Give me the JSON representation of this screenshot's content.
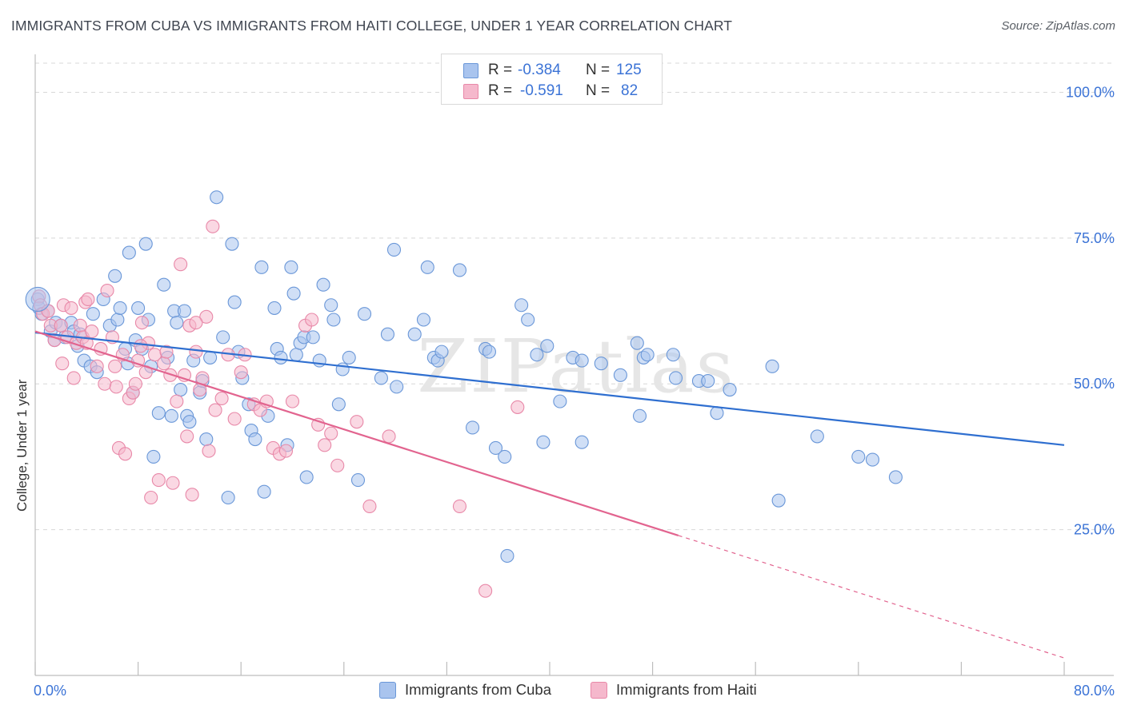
{
  "title": "IMMIGRANTS FROM CUBA VS IMMIGRANTS FROM HAITI COLLEGE, UNDER 1 YEAR CORRELATION CHART",
  "source": "Source: ZipAtlas.com",
  "watermark": "ZIPatlas",
  "legend": {
    "rows": [
      {
        "r_label": "R =",
        "r_value": "-0.384",
        "n_label": "N =",
        "n_value": "125"
      },
      {
        "r_label": "R =",
        "r_value": "-0.591",
        "n_label": "N =",
        "n_value": "82"
      }
    ]
  },
  "bottom_legend": {
    "cuba": "Immigrants from Cuba",
    "haiti": "Immigrants from Haiti"
  },
  "colors": {
    "cuba_fill": "#a9c4ee",
    "cuba_stroke": "#6a97d8",
    "cuba_line": "#2f6fd0",
    "haiti_fill": "#f5b8cc",
    "haiti_stroke": "#e888a8",
    "haiti_line": "#e2648f",
    "axis_label": "#3b73d6",
    "grid": "#d8d8d8"
  },
  "chart_data": {
    "type": "scatter",
    "title": "IMMIGRANTS FROM CUBA VS IMMIGRANTS FROM HAITI COLLEGE, UNDER 1 YEAR CORRELATION CHART",
    "xlabel": "",
    "ylabel": "College, Under 1 year",
    "xlim": [
      0,
      80
    ],
    "ylim": [
      0,
      105
    ],
    "x_tick_labels": [
      "0.0%",
      "80.0%"
    ],
    "y_tick_labels": [
      "100.0%",
      "75.0%",
      "50.0%",
      "25.0%"
    ],
    "y_ticks": [
      100,
      75,
      50,
      25
    ],
    "grid": true,
    "legend_position": "top-center",
    "series": [
      {
        "name": "Immigrants from Cuba",
        "r": -0.384,
        "n": 125,
        "trend": {
          "x0": 0,
          "y0": 58.8,
          "x1": 80,
          "y1": 39.5
        },
        "points": [
          [
            0.2,
            64.5
          ],
          [
            0.3,
            63
          ],
          [
            0.5,
            62
          ],
          [
            1.0,
            62.5
          ],
          [
            1.2,
            59
          ],
          [
            1.5,
            57.5
          ],
          [
            1.6,
            60.5
          ],
          [
            2.0,
            60
          ],
          [
            2.3,
            58
          ],
          [
            2.8,
            60.5
          ],
          [
            3.0,
            59
          ],
          [
            3.3,
            56.5
          ],
          [
            3.5,
            58.5
          ],
          [
            3.8,
            54
          ],
          [
            4.3,
            53
          ],
          [
            4.5,
            62
          ],
          [
            4.8,
            52
          ],
          [
            5.3,
            64.5
          ],
          [
            5.8,
            60
          ],
          [
            6.2,
            68.5
          ],
          [
            6.4,
            61
          ],
          [
            6.6,
            63
          ],
          [
            7.0,
            56
          ],
          [
            7.2,
            53.5
          ],
          [
            7.3,
            72.5
          ],
          [
            7.6,
            48.5
          ],
          [
            7.8,
            57.5
          ],
          [
            8.0,
            63
          ],
          [
            8.3,
            56
          ],
          [
            8.6,
            74
          ],
          [
            8.8,
            61
          ],
          [
            9.0,
            53
          ],
          [
            9.2,
            37.5
          ],
          [
            9.6,
            45
          ],
          [
            10.0,
            67
          ],
          [
            10.3,
            54.5
          ],
          [
            10.6,
            44.5
          ],
          [
            10.8,
            62.5
          ],
          [
            11.0,
            60.5
          ],
          [
            11.3,
            49
          ],
          [
            11.6,
            62.5
          ],
          [
            11.8,
            44.5
          ],
          [
            12.0,
            43.5
          ],
          [
            12.3,
            54
          ],
          [
            12.8,
            48.5
          ],
          [
            13.0,
            50.5
          ],
          [
            13.3,
            40.5
          ],
          [
            13.6,
            54.5
          ],
          [
            14.1,
            82
          ],
          [
            14.6,
            58
          ],
          [
            15.0,
            30.5
          ],
          [
            15.3,
            74
          ],
          [
            15.5,
            64
          ],
          [
            15.8,
            55.5
          ],
          [
            16.1,
            51
          ],
          [
            16.6,
            46.5
          ],
          [
            16.8,
            42
          ],
          [
            17.1,
            40.5
          ],
          [
            17.6,
            70
          ],
          [
            17.8,
            31.5
          ],
          [
            18.1,
            44.5
          ],
          [
            18.6,
            63
          ],
          [
            18.8,
            56
          ],
          [
            19.1,
            54.5
          ],
          [
            19.6,
            39.5
          ],
          [
            19.9,
            70
          ],
          [
            20.1,
            65.5
          ],
          [
            20.3,
            55
          ],
          [
            20.6,
            57
          ],
          [
            20.9,
            58
          ],
          [
            21.1,
            34
          ],
          [
            21.6,
            58
          ],
          [
            22.1,
            54
          ],
          [
            22.4,
            67
          ],
          [
            23.0,
            63.5
          ],
          [
            23.2,
            61
          ],
          [
            23.6,
            46.5
          ],
          [
            23.9,
            52.5
          ],
          [
            24.4,
            54.5
          ],
          [
            25.1,
            33.5
          ],
          [
            25.6,
            62
          ],
          [
            26.9,
            51
          ],
          [
            27.4,
            58.5
          ],
          [
            27.9,
            73
          ],
          [
            28.1,
            49.5
          ],
          [
            29.5,
            58.5
          ],
          [
            30.2,
            61
          ],
          [
            30.5,
            70
          ],
          [
            31.0,
            54.5
          ],
          [
            31.3,
            54
          ],
          [
            31.6,
            55.5
          ],
          [
            33.0,
            69.5
          ],
          [
            34.0,
            42.5
          ],
          [
            35.0,
            56
          ],
          [
            35.3,
            55.5
          ],
          [
            35.8,
            39
          ],
          [
            36.5,
            37.5
          ],
          [
            37.8,
            63.5
          ],
          [
            38.3,
            61
          ],
          [
            39.0,
            55
          ],
          [
            39.5,
            40
          ],
          [
            39.8,
            56.5
          ],
          [
            40.8,
            47
          ],
          [
            41.8,
            54.5
          ],
          [
            42.5,
            40
          ],
          [
            42.5,
            54
          ],
          [
            44.0,
            53.5
          ],
          [
            45.5,
            51.5
          ],
          [
            46.8,
            57
          ],
          [
            47.0,
            44.5
          ],
          [
            47.3,
            54.5
          ],
          [
            47.6,
            55
          ],
          [
            49.6,
            55
          ],
          [
            49.8,
            51
          ],
          [
            51.6,
            50.5
          ],
          [
            52.3,
            50.5
          ],
          [
            53.0,
            45
          ],
          [
            54.0,
            49
          ],
          [
            57.3,
            53
          ],
          [
            57.8,
            30
          ],
          [
            60.8,
            41
          ],
          [
            64.0,
            37.5
          ],
          [
            65.1,
            37
          ],
          [
            66.9,
            34
          ],
          [
            36.7,
            20.5
          ]
        ]
      },
      {
        "name": "Immigrants from Haiti",
        "r": -0.591,
        "n": 82,
        "trend": {
          "x0": 0,
          "y0": 59.0,
          "x1": 50,
          "y1": 24.0,
          "dashed_to_x": 80,
          "dashed_to_y": 3.0
        },
        "points": [
          [
            0.3,
            65
          ],
          [
            0.4,
            63.5
          ],
          [
            0.6,
            62
          ],
          [
            1.0,
            62.5
          ],
          [
            1.2,
            60
          ],
          [
            1.5,
            57.5
          ],
          [
            2.0,
            60
          ],
          [
            2.1,
            53.5
          ],
          [
            2.2,
            63.5
          ],
          [
            2.5,
            58
          ],
          [
            2.8,
            63
          ],
          [
            3.0,
            51
          ],
          [
            3.2,
            57
          ],
          [
            3.5,
            60
          ],
          [
            3.7,
            58
          ],
          [
            3.9,
            64
          ],
          [
            4.1,
            64.5
          ],
          [
            4.4,
            59
          ],
          [
            4.8,
            53
          ],
          [
            5.1,
            56
          ],
          [
            5.4,
            50
          ],
          [
            5.6,
            66
          ],
          [
            6.0,
            58
          ],
          [
            6.3,
            49.5
          ],
          [
            6.5,
            39
          ],
          [
            6.8,
            55
          ],
          [
            7.0,
            38
          ],
          [
            7.3,
            47.5
          ],
          [
            7.6,
            48.5
          ],
          [
            7.8,
            50
          ],
          [
            8.0,
            54
          ],
          [
            8.3,
            60.5
          ],
          [
            8.6,
            52
          ],
          [
            8.8,
            57
          ],
          [
            9.0,
            30.5
          ],
          [
            9.3,
            55
          ],
          [
            9.6,
            33.5
          ],
          [
            10.0,
            53.5
          ],
          [
            10.2,
            55.5
          ],
          [
            10.5,
            51.5
          ],
          [
            10.7,
            33
          ],
          [
            11.0,
            47
          ],
          [
            11.3,
            70.5
          ],
          [
            11.6,
            51.5
          ],
          [
            11.8,
            41
          ],
          [
            12.0,
            60
          ],
          [
            12.2,
            31
          ],
          [
            12.5,
            55.5
          ],
          [
            12.8,
            49
          ],
          [
            13.0,
            51
          ],
          [
            13.3,
            61.5
          ],
          [
            13.5,
            38.5
          ],
          [
            13.8,
            77
          ],
          [
            14.0,
            45.5
          ],
          [
            14.5,
            47.5
          ],
          [
            15.0,
            55
          ],
          [
            15.5,
            44
          ],
          [
            16.0,
            52
          ],
          [
            16.3,
            55
          ],
          [
            17.0,
            46.5
          ],
          [
            17.5,
            45.5
          ],
          [
            18.0,
            47
          ],
          [
            18.5,
            39
          ],
          [
            19.0,
            38
          ],
          [
            19.5,
            38.5
          ],
          [
            20.0,
            47
          ],
          [
            21.0,
            60
          ],
          [
            21.5,
            61
          ],
          [
            22.0,
            43
          ],
          [
            22.5,
            39.5
          ],
          [
            23.0,
            41.5
          ],
          [
            23.5,
            36
          ],
          [
            25.0,
            43.5
          ],
          [
            26.0,
            29
          ],
          [
            27.5,
            41
          ],
          [
            33.0,
            29
          ],
          [
            35.0,
            14.5
          ],
          [
            37.5,
            46
          ],
          [
            12.5,
            60.5
          ],
          [
            8.2,
            56.5
          ],
          [
            4.0,
            57
          ],
          [
            6.2,
            53
          ]
        ]
      }
    ]
  }
}
